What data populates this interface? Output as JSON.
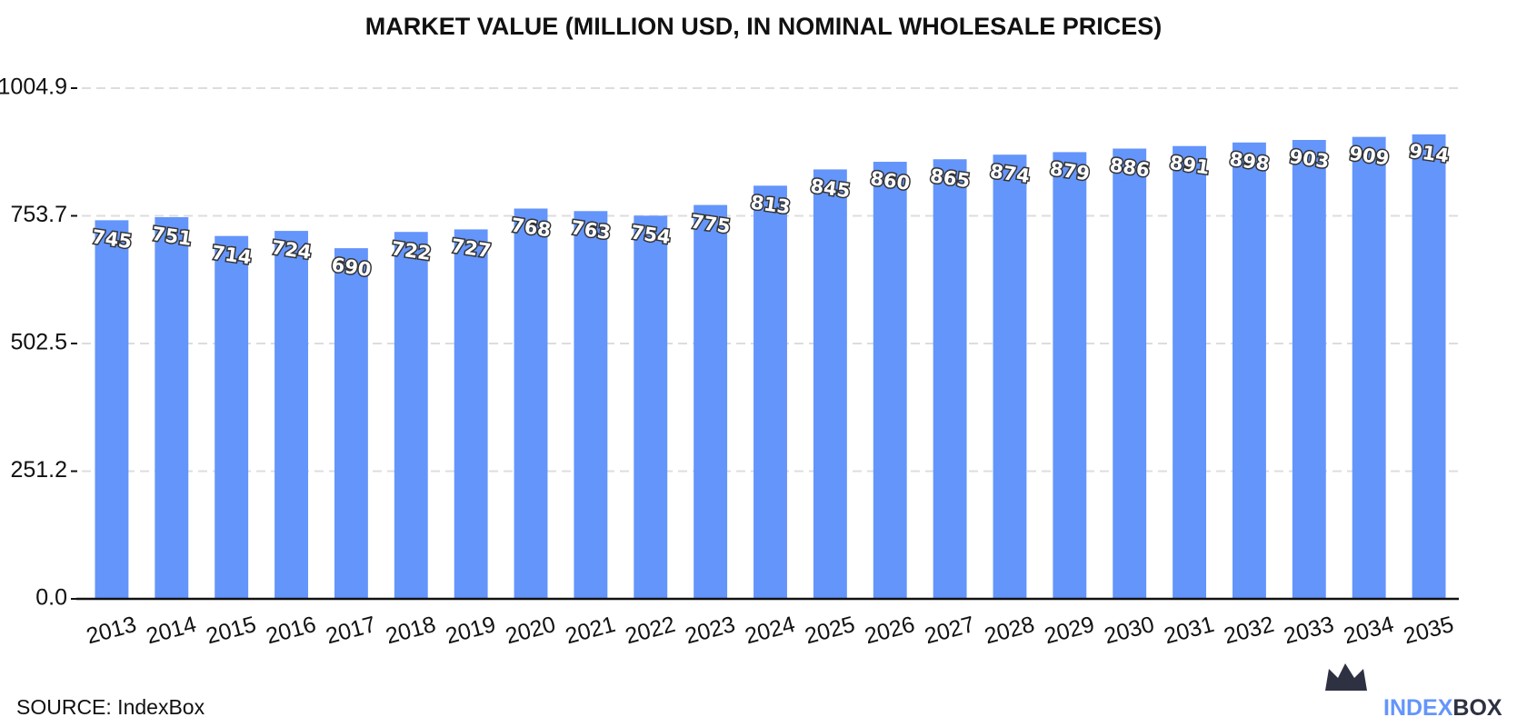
{
  "chart_data": {
    "type": "bar",
    "title": "MARKET VALUE (MILLION USD, IN NOMINAL WHOLESALE PRICES)",
    "categories": [
      "2013",
      "2014",
      "2015",
      "2016",
      "2017",
      "2018",
      "2019",
      "2020",
      "2021",
      "2022",
      "2023",
      "2024",
      "2025",
      "2026",
      "2027",
      "2028",
      "2029",
      "2030",
      "2031",
      "2032",
      "2033",
      "2034",
      "2035"
    ],
    "values": [
      745,
      751,
      714,
      724,
      690,
      722,
      727,
      768,
      763,
      754,
      775,
      813,
      845,
      860,
      865,
      874,
      879,
      886,
      891,
      898,
      903,
      909,
      914
    ],
    "color": "#6495fb",
    "ylim": [
      0,
      1004.9
    ],
    "yticks": [
      {
        "value": 0,
        "label": "0.0"
      },
      251.2,
      502.5,
      753.7,
      1004.9
    ],
    "grid": true,
    "source": "SOURCE: IndexBox",
    "logo": {
      "left": "INDEX",
      "right": "BOX"
    }
  }
}
